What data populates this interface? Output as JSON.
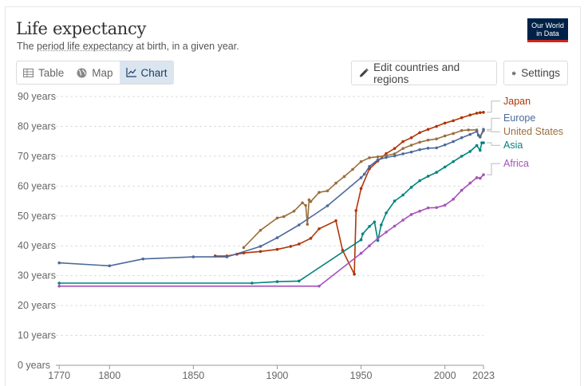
{
  "header": {
    "title": "Life expectancy",
    "subtitle_prefix": "The",
    "subtitle_link": "period life expectancy",
    "subtitle_suffix": "at birth, in a given year.",
    "logo_line1": "Our World",
    "logo_line2": "in Data"
  },
  "tabs": [
    {
      "label": "Table",
      "icon": "table-icon",
      "active": false
    },
    {
      "label": "Map",
      "icon": "globe-icon",
      "active": false
    },
    {
      "label": "Chart",
      "icon": "line-chart-icon",
      "active": true
    }
  ],
  "toolbar": {
    "edit_label": "Edit countries and regions",
    "settings_label": "Settings"
  },
  "colors": {
    "Japan": "#b13507",
    "United States": "#9a6f3c",
    "Europe": "#4c6a9c",
    "Asia": "#00847e",
    "Africa": "#a652ba"
  },
  "chart_data": {
    "type": "line",
    "title": "Life expectancy",
    "ylabel": "",
    "xlabel": "",
    "xlim": [
      1768,
      2023
    ],
    "ylim": [
      0,
      90
    ],
    "x_ticks": [
      "1770",
      "1800",
      "1850",
      "1900",
      "1950",
      "2000",
      "2023"
    ],
    "x_tick_values": [
      1770,
      1800,
      1850,
      1900,
      1950,
      2000,
      2023
    ],
    "y_ticks": [
      "0 years",
      "10 years",
      "20 years",
      "30 years",
      "40 years",
      "50 years",
      "60 years",
      "70 years",
      "80 years",
      "90 years"
    ],
    "y_tick_values": [
      0,
      10,
      20,
      30,
      40,
      50,
      60,
      70,
      80,
      90
    ],
    "grid": true,
    "legend_position": "right",
    "series": [
      {
        "name": "Japan",
        "points": [
          [
            1863,
            36.6
          ],
          [
            1870,
            36.6
          ],
          [
            1876,
            37.2
          ],
          [
            1880,
            37.6
          ],
          [
            1890,
            38.1
          ],
          [
            1900,
            38.8
          ],
          [
            1908,
            39.8
          ],
          [
            1913,
            40.6
          ],
          [
            1920,
            42.5
          ],
          [
            1925,
            45.7
          ],
          [
            1935,
            48.4
          ],
          [
            1939,
            38.5
          ],
          [
            1946,
            30.5
          ],
          [
            1947,
            51.8
          ],
          [
            1950,
            59.2
          ],
          [
            1955,
            65.8
          ],
          [
            1960,
            68.4
          ],
          [
            1965,
            70.9
          ],
          [
            1970,
            72.6
          ],
          [
            1975,
            74.9
          ],
          [
            1980,
            76.2
          ],
          [
            1985,
            77.9
          ],
          [
            1990,
            79.0
          ],
          [
            1995,
            80.0
          ],
          [
            2000,
            81.1
          ],
          [
            2005,
            81.9
          ],
          [
            2010,
            82.9
          ],
          [
            2015,
            83.8
          ],
          [
            2019,
            84.4
          ],
          [
            2021,
            84.6
          ],
          [
            2023,
            84.7
          ]
        ]
      },
      {
        "name": "United States",
        "points": [
          [
            1880,
            39.4
          ],
          [
            1890,
            45.2
          ],
          [
            1900,
            49.3
          ],
          [
            1904,
            49.8
          ],
          [
            1910,
            51.6
          ],
          [
            1915,
            54.4
          ],
          [
            1917,
            53.5
          ],
          [
            1918,
            47.2
          ],
          [
            1919,
            55.4
          ],
          [
            1920,
            54.8
          ],
          [
            1925,
            57.9
          ],
          [
            1930,
            58.4
          ],
          [
            1935,
            61.0
          ],
          [
            1940,
            63.2
          ],
          [
            1945,
            65.6
          ],
          [
            1950,
            68.2
          ],
          [
            1955,
            69.5
          ],
          [
            1960,
            69.8
          ],
          [
            1965,
            70.2
          ],
          [
            1970,
            70.8
          ],
          [
            1975,
            72.6
          ],
          [
            1980,
            73.7
          ],
          [
            1985,
            74.7
          ],
          [
            1990,
            75.4
          ],
          [
            1995,
            75.8
          ],
          [
            2000,
            76.8
          ],
          [
            2005,
            77.6
          ],
          [
            2010,
            78.6
          ],
          [
            2014,
            78.8
          ],
          [
            2019,
            78.8
          ],
          [
            2020,
            77.0
          ],
          [
            2021,
            76.4
          ],
          [
            2023,
            78.5
          ]
        ]
      },
      {
        "name": "Europe",
        "points": [
          [
            1770,
            34.3
          ],
          [
            1800,
            33.3
          ],
          [
            1820,
            35.6
          ],
          [
            1850,
            36.3
          ],
          [
            1870,
            36.3
          ],
          [
            1890,
            39.8
          ],
          [
            1900,
            42.7
          ],
          [
            1913,
            47.0
          ],
          [
            1930,
            53.4
          ],
          [
            1950,
            62.8
          ],
          [
            1952,
            64.0
          ],
          [
            1955,
            66.6
          ],
          [
            1960,
            68.8
          ],
          [
            1965,
            69.6
          ],
          [
            1970,
            70.1
          ],
          [
            1975,
            70.8
          ],
          [
            1980,
            71.4
          ],
          [
            1985,
            72.2
          ],
          [
            1990,
            72.7
          ],
          [
            1995,
            72.8
          ],
          [
            2000,
            73.8
          ],
          [
            2005,
            74.9
          ],
          [
            2010,
            76.2
          ],
          [
            2015,
            77.3
          ],
          [
            2019,
            78.3
          ],
          [
            2020,
            77.0
          ],
          [
            2021,
            76.5
          ],
          [
            2023,
            79.0
          ]
        ]
      },
      {
        "name": "Asia",
        "points": [
          [
            1770,
            27.5
          ],
          [
            1885,
            27.5
          ],
          [
            1900,
            28.0
          ],
          [
            1913,
            28.2
          ],
          [
            1950,
            42.0
          ],
          [
            1951,
            44.0
          ],
          [
            1955,
            46.5
          ],
          [
            1958,
            48.0
          ],
          [
            1960,
            41.8
          ],
          [
            1962,
            47.0
          ],
          [
            1965,
            51.0
          ],
          [
            1970,
            55.0
          ],
          [
            1975,
            57.0
          ],
          [
            1980,
            59.6
          ],
          [
            1985,
            61.8
          ],
          [
            1990,
            63.3
          ],
          [
            1995,
            64.6
          ],
          [
            2000,
            66.4
          ],
          [
            2005,
            68.2
          ],
          [
            2010,
            70.0
          ],
          [
            2015,
            71.6
          ],
          [
            2019,
            73.6
          ],
          [
            2021,
            72.0
          ],
          [
            2022,
            74.5
          ],
          [
            2023,
            74.5
          ]
        ]
      },
      {
        "name": "Africa",
        "points": [
          [
            1770,
            26.5
          ],
          [
            1925,
            26.5
          ],
          [
            1950,
            37.5
          ],
          [
            1955,
            40.0
          ],
          [
            1960,
            42.5
          ],
          [
            1965,
            44.6
          ],
          [
            1970,
            46.6
          ],
          [
            1975,
            48.6
          ],
          [
            1980,
            50.5
          ],
          [
            1985,
            51.6
          ],
          [
            1990,
            52.7
          ],
          [
            1995,
            52.8
          ],
          [
            2000,
            53.6
          ],
          [
            2005,
            55.6
          ],
          [
            2010,
            58.6
          ],
          [
            2015,
            61.0
          ],
          [
            2019,
            62.8
          ],
          [
            2021,
            62.6
          ],
          [
            2023,
            63.8
          ]
        ]
      }
    ]
  }
}
